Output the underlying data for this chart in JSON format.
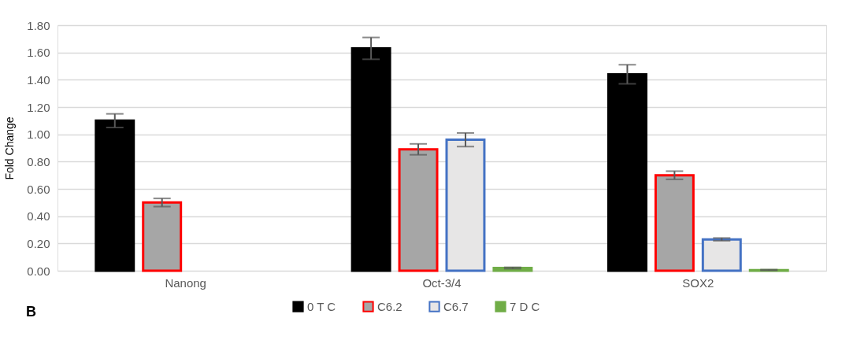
{
  "chart_data": {
    "type": "bar",
    "ylabel": "Fold Change",
    "categories": [
      "Nanong",
      "Oct-3/4",
      "SOX2"
    ],
    "series": [
      {
        "name": "0 T C",
        "color": "#000000",
        "values": [
          1.1,
          1.63,
          1.44
        ],
        "errors": [
          0.05,
          0.08,
          0.07
        ]
      },
      {
        "name": "C6.2",
        "color": "#a6a6a6",
        "values": [
          0.5,
          0.89,
          0.7
        ],
        "errors": [
          0.03,
          0.04,
          0.03
        ]
      },
      {
        "name": "C6.7",
        "color": "#e7e6e6",
        "values": [
          null,
          0.96,
          0.23
        ],
        "errors": [
          null,
          0.05,
          0.01
        ]
      },
      {
        "name": "7 D C",
        "color": "#70ad47",
        "values": [
          null,
          0.02,
          0.005
        ],
        "errors": [
          null,
          0.005,
          0.003
        ]
      }
    ],
    "ylim": [
      0,
      1.8
    ],
    "yticks": [
      {
        "value": 0,
        "label": "0.00"
      },
      {
        "value": 0.2,
        "label": "0.20"
      },
      {
        "value": 0.4,
        "label": "0.40"
      },
      {
        "value": 0.6,
        "label": "0.60"
      },
      {
        "value": 0.8,
        "label": "0.80"
      },
      {
        "value": 1.0,
        "label": "1.00"
      },
      {
        "value": 1.2,
        "label": "1.20"
      },
      {
        "value": 1.4,
        "label": "1.40"
      },
      {
        "value": 1.6,
        "label": "1.60"
      },
      {
        "value": 1.8,
        "label": "1.80"
      }
    ],
    "grid": "y",
    "legend": "bottom",
    "annotations": [
      "B"
    ]
  }
}
